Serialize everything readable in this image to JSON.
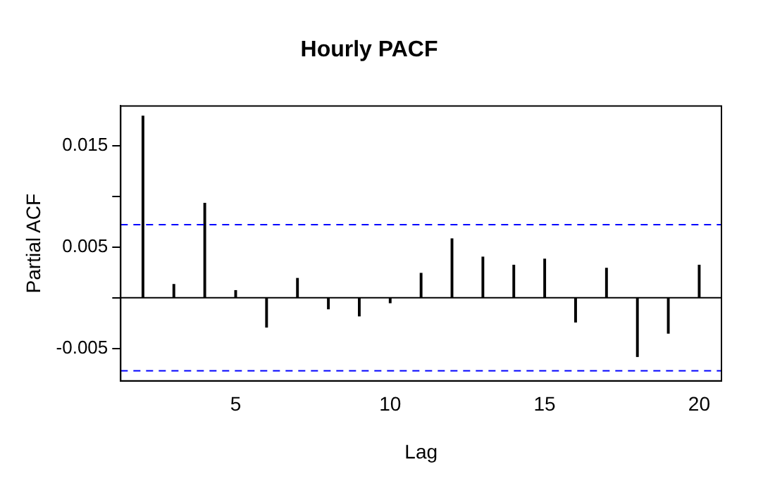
{
  "chart_data": {
    "type": "bar",
    "title": "Hourly PACF",
    "xlabel": "Lag",
    "ylabel": "Partial ACF",
    "x": [
      2,
      3,
      4,
      5,
      6,
      7,
      8,
      9,
      10,
      11,
      12,
      13,
      14,
      15,
      16,
      17,
      18,
      19,
      20
    ],
    "values": [
      0.0179,
      0.0013,
      0.0093,
      0.0007,
      -0.0029,
      0.0019,
      -0.0011,
      -0.0018,
      -0.0005,
      0.0024,
      0.0058,
      0.004,
      0.0032,
      0.0038,
      -0.0024,
      0.0029,
      -0.0058,
      -0.0035,
      0.0032
    ],
    "color": "#000000",
    "xlim": [
      1.28,
      20.72
    ],
    "xticks": [
      5,
      10,
      15,
      20
    ],
    "ylim": [
      -0.0082,
      0.0189
    ],
    "yticks": [
      {
        "value": -0.005,
        "label": "-0.005"
      },
      {
        "value": 0,
        "label": null
      },
      {
        "value": 0.005,
        "label": "0.005"
      },
      {
        "value": 0.01,
        "label": null
      },
      {
        "value": 0.015,
        "label": "0.015"
      }
    ],
    "ref_lines": [
      {
        "axis": "y",
        "value": 0,
        "color": "#000000",
        "line_style": "solid"
      },
      {
        "axis": "y",
        "value": 0.0072,
        "color": "#0000ff",
        "line_style": "dashed"
      },
      {
        "axis": "y",
        "value": -0.0072,
        "color": "#0000ff",
        "line_style": "dashed"
      }
    ],
    "grid": false,
    "legend": false
  }
}
